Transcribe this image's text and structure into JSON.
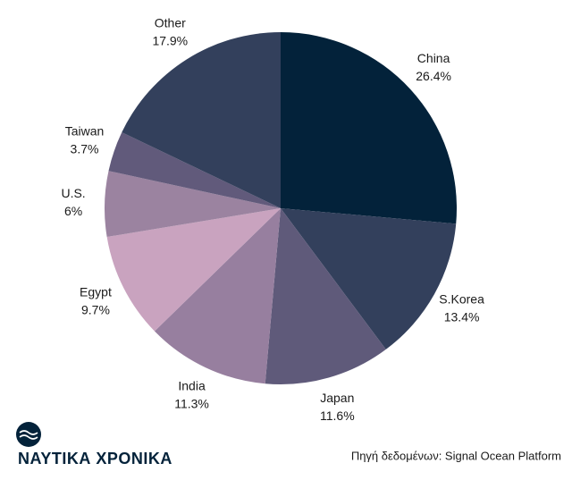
{
  "chart_data": {
    "type": "pie",
    "categories": [
      "China",
      "S.Korea",
      "Japan",
      "India",
      "Egypt",
      "U.S.",
      "Taiwan",
      "Other"
    ],
    "values": [
      26.4,
      13.4,
      11.6,
      11.3,
      9.7,
      6,
      3.7,
      17.9
    ],
    "value_labels": [
      "26.4%",
      "13.4%",
      "11.6%",
      "11.3%",
      "9.7%",
      "6%",
      "3.7%",
      "17.9%"
    ],
    "colors": [
      "#03223a",
      "#33405c",
      "#5f5a7a",
      "#977f9f",
      "#c9a3bf",
      "#9b83a0",
      "#615a7b",
      "#33405c"
    ]
  },
  "footer": {
    "brand": "ΝΑΥΤΙΚΑ ΧΡΟΝΙΚΑ",
    "source": "Πηγή δεδομένων: Signal Ocean Platform"
  }
}
